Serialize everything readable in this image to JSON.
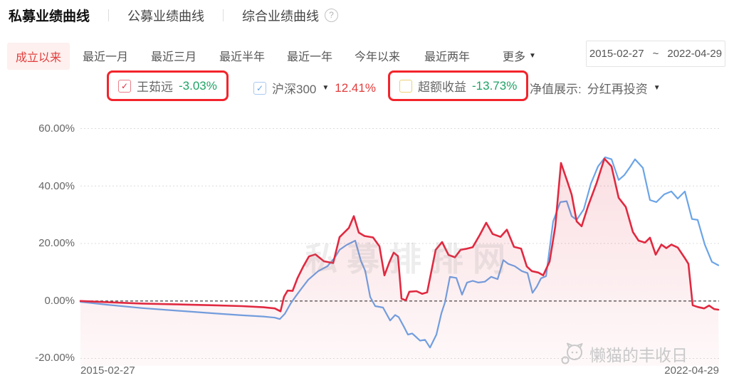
{
  "nav": {
    "tabs": [
      {
        "label": "私募业绩曲线"
      },
      {
        "label": "公募业绩曲线"
      },
      {
        "label": "综合业绩曲线"
      }
    ],
    "help_glyph": "?"
  },
  "periods": {
    "tabs": [
      "成立以来",
      "最近一月",
      "最近三月",
      "最近半年",
      "最近一年",
      "今年以来",
      "最近两年"
    ],
    "active": "成立以来",
    "more_label": "更多",
    "more_arrow": "▼"
  },
  "date_range": {
    "start": "2015-02-27",
    "tilde": "~",
    "end": "2022-04-29"
  },
  "legend": {
    "items": [
      {
        "name": "王茹远",
        "value": "-3.03%",
        "check_glyph": "✓",
        "highlighted": true
      },
      {
        "name": "沪深300",
        "value": "12.41%",
        "check_glyph": "✓",
        "dropdown_arrow": "▼"
      },
      {
        "name": "超额收益",
        "value": "-13.73%",
        "check_glyph": "",
        "highlighted": true
      }
    ],
    "display_label": "净值展示:",
    "display_value": "分红再投资",
    "display_arrow": "▼"
  },
  "watermarks": {
    "center": "私募排排网",
    "corner": "懒猫的丰收日"
  },
  "colors": {
    "accent_red": "#e23c3c",
    "value_green": "#1fa365",
    "annotation_box": "#f3242b",
    "series_red": "#e02940",
    "series_blue": "#6ba4e7"
  },
  "chart_data": {
    "type": "line",
    "title": "私募业绩曲线 (成立以来)",
    "x_range": [
      "2015-02-27",
      "2022-04-29"
    ],
    "ylim": [
      -20,
      60
    ],
    "y_ticks": [
      "60.00%",
      "40.00%",
      "20.00%",
      "0.00%",
      "-20.00%"
    ],
    "grid_values": [
      60,
      40,
      20,
      -20
    ],
    "zero_line": 0,
    "x_labels": [
      "2015-02-27",
      "2022-04-29"
    ],
    "legend_position": "top",
    "grid": "dotted",
    "series": [
      {
        "name": "王茹远",
        "final_return_pct": -3.03,
        "color": "#e02940",
        "area_fill": true,
        "points": [
          [
            113,
            0
          ],
          [
            150,
            -0.4
          ],
          [
            200,
            -0.9
          ],
          [
            250,
            -1.2
          ],
          [
            300,
            -1.5
          ],
          [
            340,
            -1.8
          ],
          [
            370,
            -2.2
          ],
          [
            386,
            -2.6
          ],
          [
            394,
            -3.6
          ],
          [
            399,
            1.5
          ],
          [
            404,
            3.6
          ],
          [
            411,
            3.5
          ],
          [
            418,
            8
          ],
          [
            426,
            12
          ],
          [
            434,
            15.5
          ],
          [
            443,
            16.2
          ],
          [
            455,
            13.8
          ],
          [
            468,
            13.2
          ],
          [
            477,
            22.2
          ],
          [
            490,
            25.4
          ],
          [
            497,
            29.5
          ],
          [
            504,
            23.8
          ],
          [
            512,
            22.6
          ],
          [
            524,
            22.1
          ],
          [
            533,
            19
          ],
          [
            540,
            8.9
          ],
          [
            547,
            13.5
          ],
          [
            553,
            16.8
          ],
          [
            559,
            15.6
          ],
          [
            564,
            0.8
          ],
          [
            570,
            0.2
          ],
          [
            575,
            3.2
          ],
          [
            585,
            3.4
          ],
          [
            593,
            2.5
          ],
          [
            600,
            3
          ],
          [
            612,
            17.8
          ],
          [
            621,
            20.5
          ],
          [
            630,
            16
          ],
          [
            639,
            15.2
          ],
          [
            647,
            17.8
          ],
          [
            656,
            18.2
          ],
          [
            664,
            18.7
          ],
          [
            674,
            23
          ],
          [
            683,
            27.2
          ],
          [
            692,
            23.3
          ],
          [
            703,
            22.3
          ],
          [
            712,
            24.8
          ],
          [
            722,
            18.8
          ],
          [
            732,
            18.2
          ],
          [
            740,
            12
          ],
          [
            747,
            10.4
          ],
          [
            756,
            9.9
          ],
          [
            763,
            8.9
          ],
          [
            772,
            13.7
          ],
          [
            780,
            26
          ],
          [
            788,
            48
          ],
          [
            797,
            41.5
          ],
          [
            803,
            37
          ],
          [
            810,
            27.7
          ],
          [
            817,
            26
          ],
          [
            826,
            33
          ],
          [
            838,
            41
          ],
          [
            849,
            49.5
          ],
          [
            859,
            46.8
          ],
          [
            869,
            35.9
          ],
          [
            879,
            32.7
          ],
          [
            889,
            24
          ],
          [
            897,
            21
          ],
          [
            906,
            20.3
          ],
          [
            913,
            22
          ],
          [
            921,
            16.1
          ],
          [
            929,
            19.6
          ],
          [
            936,
            18.4
          ],
          [
            943,
            19.6
          ],
          [
            952,
            18.6
          ],
          [
            962,
            14.9
          ],
          [
            967,
            12.9
          ],
          [
            973,
            -1.5
          ],
          [
            980,
            -2.1
          ],
          [
            989,
            -2.6
          ],
          [
            996,
            -1.6
          ],
          [
            1003,
            -2.8
          ],
          [
            1009,
            -3.03
          ]
        ]
      },
      {
        "name": "沪深300",
        "final_return_pct": 12.41,
        "color": "#6ba4e7",
        "area_fill": false,
        "points": [
          [
            113,
            -0.3
          ],
          [
            150,
            -1.3
          ],
          [
            200,
            -2.5
          ],
          [
            250,
            -3.4
          ],
          [
            300,
            -4.3
          ],
          [
            340,
            -5
          ],
          [
            370,
            -5.4
          ],
          [
            386,
            -5.8
          ],
          [
            393,
            -6.3
          ],
          [
            400,
            -4.5
          ],
          [
            408,
            -1
          ],
          [
            415,
            1.5
          ],
          [
            424,
            4.5
          ],
          [
            433,
            7.4
          ],
          [
            447,
            10.4
          ],
          [
            460,
            12.1
          ],
          [
            470,
            15
          ],
          [
            477,
            17.8
          ],
          [
            487,
            19.5
          ],
          [
            499,
            21
          ],
          [
            507,
            13.9
          ],
          [
            513,
            10.5
          ],
          [
            520,
            1.4
          ],
          [
            527,
            -1.8
          ],
          [
            538,
            -2.3
          ],
          [
            548,
            -6.8
          ],
          [
            555,
            -4.9
          ],
          [
            560,
            -5.6
          ],
          [
            567,
            -8.8
          ],
          [
            573,
            -11.7
          ],
          [
            579,
            -11.3
          ],
          [
            583,
            -12.2
          ],
          [
            590,
            -13.8
          ],
          [
            597,
            -13.5
          ],
          [
            604,
            -16.2
          ],
          [
            613,
            -11.7
          ],
          [
            620,
            -4.3
          ],
          [
            625,
            -0.5
          ],
          [
            632,
            8.4
          ],
          [
            641,
            8
          ],
          [
            649,
            2.2
          ],
          [
            656,
            6.4
          ],
          [
            664,
            7
          ],
          [
            672,
            6.4
          ],
          [
            681,
            6.7
          ],
          [
            690,
            8.4
          ],
          [
            699,
            7.6
          ],
          [
            707,
            14.2
          ],
          [
            714,
            12.9
          ],
          [
            723,
            12.1
          ],
          [
            733,
            10.4
          ],
          [
            741,
            9.7
          ],
          [
            748,
            2.8
          ],
          [
            754,
            5
          ],
          [
            760,
            7.9
          ],
          [
            767,
            8.6
          ],
          [
            777,
            27.7
          ],
          [
            787,
            34.4
          ],
          [
            796,
            34.7
          ],
          [
            803,
            29.5
          ],
          [
            810,
            28.2
          ],
          [
            820,
            31.9
          ],
          [
            830,
            40.8
          ],
          [
            840,
            46.8
          ],
          [
            850,
            50
          ],
          [
            859,
            49.3
          ],
          [
            869,
            42.1
          ],
          [
            877,
            43.8
          ],
          [
            885,
            46.6
          ],
          [
            892,
            49.3
          ],
          [
            903,
            46.3
          ],
          [
            913,
            35.1
          ],
          [
            922,
            34.4
          ],
          [
            933,
            37.1
          ],
          [
            943,
            38.1
          ],
          [
            952,
            35.6
          ],
          [
            962,
            38.1
          ],
          [
            972,
            28.5
          ],
          [
            980,
            28.2
          ],
          [
            990,
            19.6
          ],
          [
            1000,
            13.6
          ],
          [
            1009,
            12.41
          ]
        ]
      }
    ],
    "excess_return": {
      "name": "超额收益",
      "final_return_pct": -13.73,
      "shown": false
    }
  }
}
